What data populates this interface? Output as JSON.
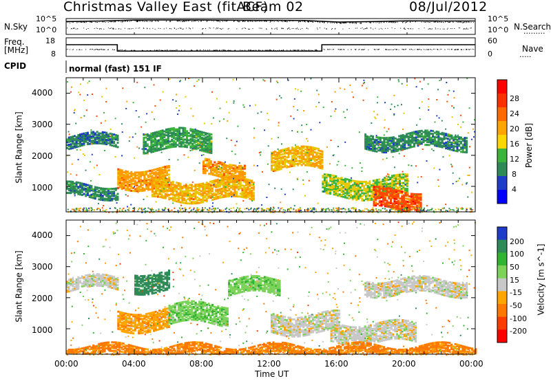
{
  "header": {
    "station": "Christmas Valley East (fitACF)",
    "beam": "Beam 02",
    "date": "08/Jul/2012"
  },
  "summary": {
    "nsky_label": "N.Sky",
    "nsky_ticks": [
      "10^5",
      "10^0"
    ],
    "nsearch_label": "N.Search",
    "nsearch_ticks": [
      "10^5",
      "10^0"
    ],
    "freq_label_1": "Freq.",
    "freq_label_2": "[MHz]",
    "freq_ticks": [
      "18",
      "8"
    ],
    "nave_label": "Nave",
    "nave_ticks": [
      "60",
      "0"
    ],
    "cpid_label": "CPID",
    "cpid_text": "normal (fast) 151 IF"
  },
  "panels": {
    "ylabel": "Slant Range [km]",
    "yticks": [
      "4000",
      "3000",
      "2000",
      "1000"
    ],
    "xlabel": "Time UT",
    "xticks": [
      "00:00",
      "04:00",
      "08:00",
      "12:00",
      "16:00",
      "20:00",
      "00:00"
    ]
  },
  "colorbars": {
    "power": {
      "label": "Power [dB]",
      "ticks": [
        "28",
        "24",
        "20",
        "16",
        "12",
        "8",
        "4"
      ],
      "colors": [
        "#ff0000",
        "#ff6a00",
        "#ffa500",
        "#ffd700",
        "#32b432",
        "#2e8b57",
        "#1e3cc8",
        "#0000ff"
      ]
    },
    "velocity": {
      "label": "Velocity [m s^-1]",
      "ticks": [
        "200",
        "100",
        "50",
        "15",
        "-15",
        "-50",
        "-100",
        "-200"
      ],
      "colors": [
        "#1e3cc8",
        "#2e8b57",
        "#32b432",
        "#7dd35a",
        "#c8c8c8",
        "#ffa500",
        "#ff7800",
        "#ff3c00",
        "#ff0000"
      ]
    }
  },
  "chart_data": [
    {
      "type": "line",
      "title": "N.Sky / N.Search",
      "x": [
        "00:00",
        "02:00",
        "04:00",
        "06:00",
        "08:00",
        "10:00",
        "12:00",
        "14:00",
        "16:00",
        "18:00",
        "20:00",
        "22:00",
        "24:00"
      ],
      "series": [
        {
          "name": "N.Sky",
          "values": [
            25000,
            40000,
            90000,
            100000,
            95000,
            80000,
            70000,
            60000,
            15000,
            25000,
            45000,
            40000,
            40000
          ]
        }
      ],
      "ylim": [
        1,
        100000
      ],
      "yscale": "log"
    },
    {
      "type": "line",
      "title": "Freq. / Nave",
      "x": [
        "00:00",
        "03:00",
        "03:00",
        "15:00",
        "15:00",
        "24:00"
      ],
      "series": [
        {
          "name": "Freq.",
          "values": [
            14.5,
            14.5,
            10.5,
            10.5,
            14.5,
            14.5
          ]
        },
        {
          "name": "Nave",
          "values": [
            18,
            18,
            16,
            16,
            18,
            18
          ]
        }
      ],
      "ylim": [
        8,
        18
      ]
    },
    {
      "type": "heatmap",
      "title": "Power [dB]",
      "xlabel": "Time UT",
      "ylabel": "Slant Range [km]",
      "xlim": [
        0,
        24
      ],
      "ylim": [
        180,
        4500
      ],
      "zlim": [
        0,
        30
      ],
      "bands": [
        {
          "t_start": 0.0,
          "t_end": 3.0,
          "range_center_km": 2500,
          "width_km": 200,
          "power_db": 9
        },
        {
          "t_start": 0.0,
          "t_end": 3.0,
          "range_center_km": 900,
          "width_km": 200,
          "power_db": 10
        },
        {
          "t_start": 3.0,
          "t_end": 6.0,
          "range_center_km": 1300,
          "width_km": 300,
          "power_db": 22
        },
        {
          "t_start": 5.0,
          "t_end": 11.0,
          "range_center_km": 900,
          "width_km": 300,
          "power_db": 20
        },
        {
          "t_start": 8.0,
          "t_end": 10.5,
          "range_center_km": 1600,
          "width_km": 250,
          "power_db": 22
        },
        {
          "t_start": 4.5,
          "t_end": 8.5,
          "range_center_km": 2500,
          "width_km": 300,
          "power_db": 12
        },
        {
          "t_start": 12.0,
          "t_end": 15.0,
          "range_center_km": 1900,
          "width_km": 300,
          "power_db": 20
        },
        {
          "t_start": 15.0,
          "t_end": 20.0,
          "range_center_km": 1000,
          "width_km": 300,
          "power_db": 16
        },
        {
          "t_start": 18.0,
          "t_end": 20.8,
          "range_center_km": 600,
          "width_km": 300,
          "power_db": 26
        },
        {
          "t_start": 17.5,
          "t_end": 23.5,
          "range_center_km": 2500,
          "width_km": 250,
          "power_db": 10
        }
      ]
    },
    {
      "type": "heatmap",
      "title": "Velocity [m s^-1]",
      "xlabel": "Time UT",
      "ylabel": "Slant Range [km]",
      "xlim": [
        0,
        24
      ],
      "ylim": [
        180,
        4500
      ],
      "zlim": [
        -200,
        200
      ],
      "bands": [
        {
          "t_start": 0.0,
          "t_end": 3.0,
          "range_center_km": 2500,
          "width_km": 200,
          "velocity": 0
        },
        {
          "t_start": 3.0,
          "t_end": 6.0,
          "range_center_km": 1300,
          "width_km": 300,
          "velocity": -40
        },
        {
          "t_start": 6.0,
          "t_end": 9.5,
          "range_center_km": 1500,
          "width_km": 300,
          "velocity": 40
        },
        {
          "t_start": 4.0,
          "t_end": 6.0,
          "range_center_km": 2550,
          "width_km": 300,
          "velocity": 150
        },
        {
          "t_start": 9.5,
          "t_end": 12.5,
          "range_center_km": 2400,
          "width_km": 250,
          "velocity": 40
        },
        {
          "t_start": 12.0,
          "t_end": 16.0,
          "range_center_km": 1200,
          "width_km": 300,
          "velocity": 0
        },
        {
          "t_start": 15.5,
          "t_end": 20.5,
          "range_center_km": 900,
          "width_km": 300,
          "velocity": 0
        },
        {
          "t_start": 17.5,
          "t_end": 23.5,
          "range_center_km": 2400,
          "width_km": 250,
          "velocity": 0
        },
        {
          "t_start": 0.0,
          "t_end": 24.0,
          "range_center_km": 350,
          "width_km": 150,
          "velocity": -60
        }
      ]
    }
  ]
}
